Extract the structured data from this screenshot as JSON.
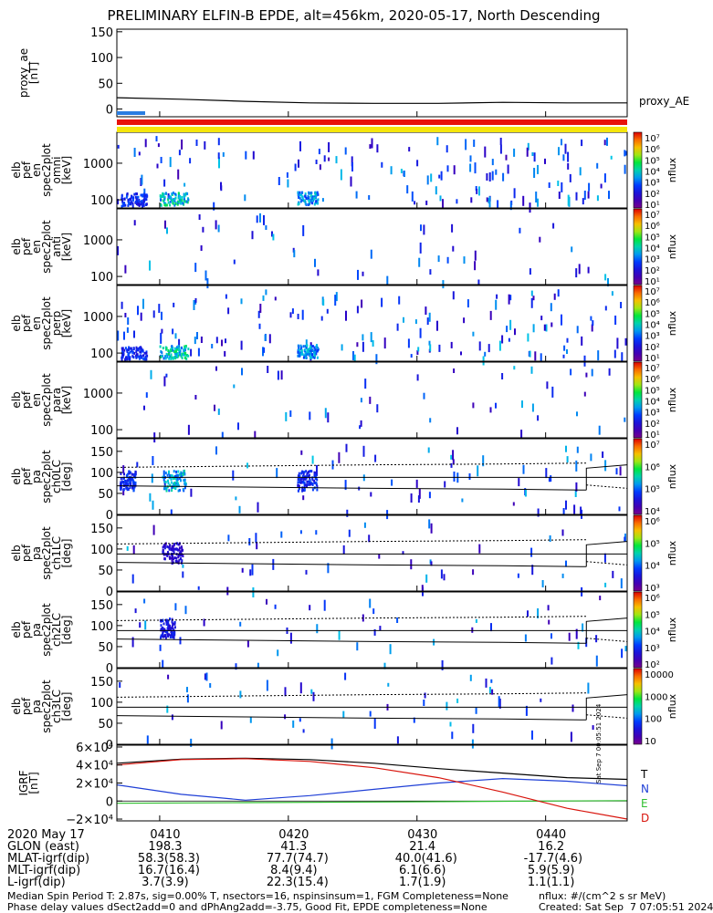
{
  "title": "PRELIMINARY ELFIN-B EPDE, alt=456km, 2020-05-17, North Descending",
  "chart_data": {
    "type": "heatmap",
    "time_axis": {
      "date_label": "2020 May 17",
      "ticks": [
        "0410",
        "0420",
        "0430",
        "0440"
      ],
      "range": [
        "04:06:40",
        "04:46:20"
      ]
    },
    "panels": [
      {
        "id": "proxy_ae",
        "type": "line",
        "ylabel": [
          "proxy_ae",
          "[nT]"
        ],
        "yticks": [
          "150",
          "100",
          "50",
          "0"
        ],
        "ylim": [
          -15,
          155
        ],
        "legend": "proxy_AE",
        "series": [
          {
            "name": "proxy_AE",
            "x_min": [
              0,
              5,
              10,
              15,
              20,
              25,
              30,
              35,
              39.67
            ],
            "values": [
              22,
              19,
              15,
              12,
              11,
              11,
              13,
              12,
              12
            ]
          }
        ],
        "bars": [
          {
            "color": "#2a7de1",
            "start_min": 0,
            "end_min": 2.2
          },
          {
            "color": "#e8130b",
            "start_min": 0,
            "end_min": 39.67
          },
          {
            "color": "#f5e60c",
            "start_min": 0,
            "end_min": 39.67
          }
        ]
      },
      {
        "id": "en_omni",
        "type": "heatmap",
        "ylabel": [
          "elb",
          "pef",
          "en",
          "spec2plot",
          "omni",
          "[keV]"
        ],
        "yticks": [
          "1000",
          "100"
        ],
        "yscale": "log",
        "ylim_keV": [
          60,
          7000
        ],
        "colorbar": {
          "label": "nflux",
          "ticks": [
            "10⁷",
            "10⁶",
            "10⁵",
            "10⁴",
            "10³",
            "10²",
            "10¹"
          ]
        },
        "hotspots": [
          {
            "t_min": 3.3,
            "dur_min": 2.2,
            "keV": 95,
            "level": 0.55
          },
          {
            "t_min": 14.0,
            "dur_min": 1.6,
            "keV": 100,
            "level": 0.45
          },
          {
            "t_min": 0.3,
            "dur_min": 2.0,
            "keV": 90,
            "level": 0.3
          }
        ]
      },
      {
        "id": "en_anti",
        "type": "heatmap",
        "ylabel": [
          "elb",
          "pef",
          "en",
          "spec2plot",
          "anti",
          "[keV]"
        ],
        "yticks": [
          "1000",
          "100"
        ],
        "yscale": "log",
        "ylim_keV": [
          60,
          7000
        ],
        "colorbar": {
          "label": "nflux",
          "ticks": [
            "10⁷",
            "10⁶",
            "10⁵",
            "10⁴",
            "10³",
            "10²",
            "10¹"
          ]
        },
        "hotspots": []
      },
      {
        "id": "en_perp",
        "type": "heatmap",
        "ylabel": [
          "elb",
          "pef",
          "en",
          "spec2plot",
          "perp",
          "[keV]"
        ],
        "yticks": [
          "1000",
          "100"
        ],
        "yscale": "log",
        "ylim_keV": [
          60,
          7000
        ],
        "colorbar": {
          "label": "nflux",
          "ticks": [
            "10⁷",
            "10⁶",
            "10⁵",
            "10⁴",
            "10³",
            "10²",
            "10¹"
          ]
        },
        "hotspots": [
          {
            "t_min": 3.3,
            "dur_min": 2.2,
            "keV": 95,
            "level": 0.55
          },
          {
            "t_min": 14.0,
            "dur_min": 1.6,
            "keV": 100,
            "level": 0.45
          },
          {
            "t_min": 0.3,
            "dur_min": 2.0,
            "keV": 90,
            "level": 0.3
          }
        ]
      },
      {
        "id": "en_para",
        "type": "heatmap",
        "ylabel": [
          "elb",
          "pef",
          "en",
          "spec2plot",
          "para",
          "[keV]"
        ],
        "yticks": [
          "1000",
          "100"
        ],
        "yscale": "log",
        "ylim_keV": [
          60,
          7000
        ],
        "colorbar": {
          "label": "nflux",
          "ticks": [
            "10⁷",
            "10⁶",
            "10⁵",
            "10⁴",
            "10³",
            "10²",
            "10¹"
          ]
        },
        "hotspots": []
      },
      {
        "id": "pa_ch0",
        "type": "heatmap",
        "ylabel": [
          "elb",
          "pef",
          "pa",
          "spec2plot",
          "ch0LC",
          "[deg]"
        ],
        "yticks": [
          "150",
          "100",
          "50",
          "0"
        ],
        "ylim_deg": [
          0,
          180
        ],
        "colorbar": {
          "label": "nflux",
          "ticks": [
            "10⁷",
            "10⁶",
            "10⁵",
            "10⁴"
          ]
        },
        "hotspots": [
          {
            "t_min": 3.5,
            "dur_min": 1.8,
            "deg": 85,
            "level": 0.5
          },
          {
            "t_min": 14.0,
            "dur_min": 1.5,
            "deg": 85,
            "level": 0.3
          },
          {
            "t_min": 0.2,
            "dur_min": 1.2,
            "deg": 85,
            "level": 0.3
          }
        ]
      },
      {
        "id": "pa_ch1",
        "type": "heatmap",
        "ylabel": [
          "elb",
          "pef",
          "pa",
          "spec2plot",
          "ch1LC",
          "[deg]"
        ],
        "yticks": [
          "150",
          "100",
          "50",
          "0"
        ],
        "ylim_deg": [
          0,
          180
        ],
        "colorbar": {
          "label": "nflux",
          "ticks": [
            "10⁶",
            "10⁵",
            "10⁴",
            "10³"
          ]
        },
        "hotspots": [
          {
            "t_min": 3.5,
            "dur_min": 1.6,
            "deg": 95,
            "level": 0.2
          }
        ]
      },
      {
        "id": "pa_ch2",
        "type": "heatmap",
        "ylabel": [
          "elb",
          "pef",
          "pa",
          "spec2plot",
          "ch2LC",
          "[deg]"
        ],
        "yticks": [
          "150",
          "100",
          "50",
          "0"
        ],
        "ylim_deg": [
          0,
          180
        ],
        "colorbar": {
          "label": "nflux",
          "ticks": [
            "10⁶",
            "10⁵",
            "10⁴",
            "10³",
            "10²"
          ]
        },
        "hotspots": [
          {
            "t_min": 3.3,
            "dur_min": 1.2,
            "deg": 100,
            "level": 0.25
          }
        ]
      },
      {
        "id": "pa_ch3",
        "type": "heatmap",
        "ylabel": [
          "elb",
          "pef",
          "pa",
          "spec2plot",
          "ch3LC",
          "[deg]"
        ],
        "yticks": [
          "150",
          "100",
          "50",
          "0"
        ],
        "ylim_deg": [
          0,
          180
        ],
        "colorbar": {
          "label": "nflux",
          "ticks": [
            "10000",
            "1000",
            "100",
            "10"
          ]
        },
        "hotspots": []
      },
      {
        "id": "igrf",
        "type": "line",
        "ylabel": [
          "IGRF",
          "[nT]"
        ],
        "yticks": [
          "6×10⁴",
          "4×10⁴",
          "2×10⁴",
          "0",
          "−2×10⁴"
        ],
        "ylim": [
          -22000,
          62000
        ],
        "side_label": "Sat Sep  7 00:05:51 2024",
        "series": [
          {
            "name": "T",
            "color": "#000000",
            "x_min": [
              0,
              5,
              10,
              15,
              20,
              25,
              30,
              35,
              39.67
            ],
            "values": [
              42000,
              46500,
              47500,
              46000,
              42000,
              36000,
              31000,
              26000,
              24000
            ]
          },
          {
            "name": "N",
            "color": "#1f3fd6",
            "x_min": [
              0,
              5,
              10,
              15,
              20,
              25,
              30,
              35,
              39.67
            ],
            "values": [
              18000,
              7500,
              1000,
              6000,
              13000,
              20000,
              25000,
              22000,
              17000
            ]
          },
          {
            "name": "E",
            "color": "#2fbf2f",
            "x_min": [
              0,
              10,
              20,
              30,
              39.67
            ],
            "values": [
              -2500,
              -1800,
              -1000,
              -200,
              500
            ]
          },
          {
            "name": "D",
            "color": "#d8140c",
            "x_min": [
              0,
              5,
              10,
              15,
              20,
              25,
              30,
              35,
              39.67
            ],
            "values": [
              40000,
              46000,
              47000,
              44000,
              37000,
              26000,
              10000,
              -8000,
              -20000
            ]
          }
        ]
      }
    ]
  },
  "ephemeris": {
    "rows": [
      {
        "label": "2020 May 17",
        "values": [
          "0410",
          "0420",
          "0430",
          "0440"
        ]
      },
      {
        "label": "GLON (east)",
        "values": [
          "198.3",
          "41.3",
          "21.4",
          "16.2"
        ]
      },
      {
        "label": "MLAT-igrf(dip)",
        "values": [
          "58.3(58.3)",
          "77.7(74.7)",
          "40.0(41.6)",
          "-17.7(4.6)"
        ]
      },
      {
        "label": "MLT-igrf(dip)",
        "values": [
          "16.7(16.4)",
          "8.4(9.4)",
          "6.1(6.6)",
          "5.9(5.9)"
        ]
      },
      {
        "label": "L-igrf(dip)",
        "values": [
          "3.7(3.9)",
          "22.3(15.4)",
          "1.7(1.9)",
          "1.1(1.1)"
        ]
      }
    ]
  },
  "footer": {
    "line1": "Median Spin Period T: 2.87s, sig=0.00% T, nsectors=16, nspinsinsum=1, FGM Completeness=None",
    "line2": "Phase delay values dSect2add=0 and dPhAng2add=-3.75, Good Fit, EPDE completeness=None",
    "units": "nflux: #/(cm^2 s sr MeV)",
    "created": "Created: Sat Sep  7 07:05:51 2024"
  }
}
